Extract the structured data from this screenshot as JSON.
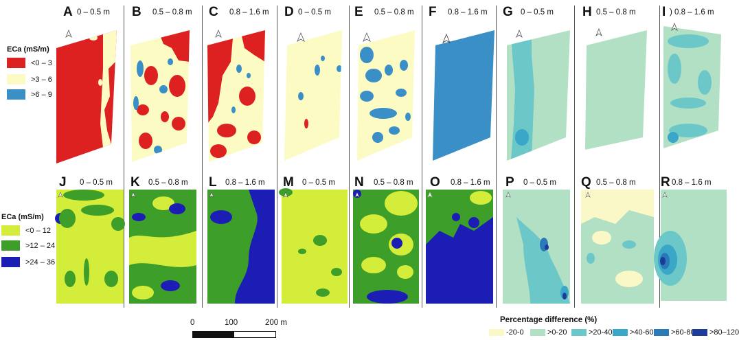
{
  "colors": {
    "red": "#dd2020",
    "cream": "#fdfbc4",
    "blue": "#3a8fc6",
    "lime": "#d4ec3a",
    "green": "#3e9e2a",
    "navy": "#1c1db5",
    "pd_cream": "#fbf8c8",
    "pd_mint": "#b2e0c4",
    "pd_teal1": "#6cc8c8",
    "pd_teal2": "#3aa6c8",
    "pd_blue": "#2a7ab8",
    "pd_navy": "#1e3a9a"
  },
  "legend_top": {
    "title": "ECa (mS/m)",
    "items": [
      {
        "label": "<0 – 3",
        "color": "#dd2020"
      },
      {
        "label": ">3 – 6",
        "color": "#fdfbc4"
      },
      {
        "label": ">6 – 9",
        "color": "#3a8fc6"
      }
    ]
  },
  "legend_bottom": {
    "title": "ECa (mS/m)",
    "items": [
      {
        "label": "<0 – 12",
        "color": "#d4ec3a"
      },
      {
        "label": ">12 – 24",
        "color": "#3e9e2a"
      },
      {
        "label": ">24 – 36",
        "color": "#1c1db5"
      }
    ]
  },
  "panels_top": [
    {
      "letter": "A",
      "depth": "0 – 0.5 m"
    },
    {
      "letter": "B",
      "depth": "0.5 – 0.8 m"
    },
    {
      "letter": "C",
      "depth": "0.8 – 1.6 m"
    },
    {
      "letter": "D",
      "depth": "0 – 0.5 m"
    },
    {
      "letter": "E",
      "depth": "0.5 – 0.8 m"
    },
    {
      "letter": "F",
      "depth": "0.8 – 1.6 m"
    },
    {
      "letter": "G",
      "depth": "0 – 0.5 m"
    },
    {
      "letter": "H",
      "depth": "0.5 – 0.8 m"
    },
    {
      "letter": "I",
      "depth": ") 0.8 – 1.6 m"
    }
  ],
  "panels_bottom": [
    {
      "letter": "J",
      "depth": "0 – 0.5 m"
    },
    {
      "letter": "K",
      "depth": "0.5 – 0.8 m"
    },
    {
      "letter": "L",
      "depth": "0.8 – 1.6 m"
    },
    {
      "letter": "M",
      "depth": "0 – 0.5 m"
    },
    {
      "letter": "N",
      "depth": "0.5 – 0.8 m"
    },
    {
      "letter": "O",
      "depth": "0.8 – 1.6 m"
    },
    {
      "letter": "P",
      "depth": "0 – 0.5 m"
    },
    {
      "letter": "Q",
      "depth": "0.5 – 0.8 m"
    },
    {
      "letter": "R",
      "depth": "0.8 – 1.6 m"
    }
  ],
  "scale_bar": {
    "labels": [
      "0",
      "100",
      "200 m"
    ]
  },
  "pct_legend": {
    "title": "Percentage difference (%)",
    "items": [
      {
        "label": "-20-0",
        "color": "#fbf8c8"
      },
      {
        "label": ">0-20",
        "color": "#b2e0c4"
      },
      {
        "label": ">20-40",
        "color": "#6cc8c8"
      },
      {
        "label": ">40-60",
        "color": "#3aa6c8"
      },
      {
        "label": ">60-80",
        "color": "#2a7ab8"
      },
      {
        "label": ">80–120",
        "color": "#1e3a9a"
      }
    ]
  }
}
